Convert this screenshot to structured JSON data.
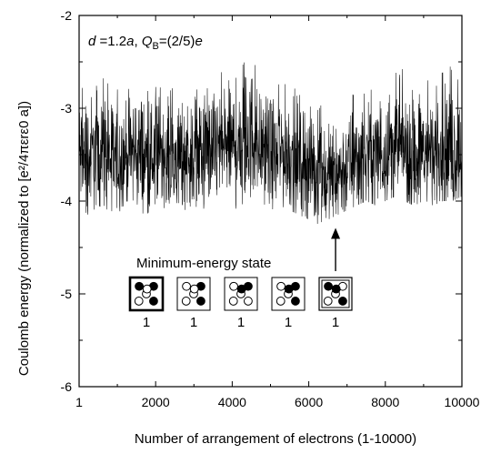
{
  "chart_data": {
    "type": "line",
    "xlabel": "Number of arrangement of electrons (1-10000)",
    "ylabel": "Coulomb energy  (normalized to  [e²/4πεrε0 a])",
    "xlim": [
      1,
      10000
    ],
    "ylim": [
      -6,
      -2
    ],
    "x_ticks": [
      1,
      2000,
      4000,
      6000,
      8000,
      10000
    ],
    "x_tick_labels": [
      "1",
      "2000",
      "4000",
      "6000",
      "8000",
      "10000"
    ],
    "y_ticks": [
      -6,
      -5,
      -4,
      -3,
      -2
    ],
    "y_tick_labels": [
      "-6",
      "-5",
      "-4",
      "-3",
      "-2"
    ],
    "grid": false,
    "series": [
      {
        "x": [
          1,
          250,
          500,
          750,
          1000,
          1250,
          1500,
          1750,
          2000,
          2250,
          2500,
          2750,
          3000,
          3250,
          3500,
          3750,
          4000,
          4250,
          4500,
          4750,
          5000,
          5250,
          5500,
          5750,
          6000,
          6250,
          6500,
          6750,
          7000,
          7250,
          7500,
          7750,
          8000,
          8250,
          8500,
          8750,
          9000,
          9250,
          9500,
          9750,
          10000
        ],
        "y": [
          -3.5,
          -3.55,
          -3.45,
          -3.5,
          -3.55,
          -3.5,
          -3.45,
          -3.55,
          -3.5,
          -3.45,
          -3.55,
          -3.5,
          -3.45,
          -3.5,
          -3.45,
          -3.4,
          -3.4,
          -3.35,
          -3.3,
          -3.4,
          -3.5,
          -3.45,
          -3.5,
          -3.55,
          -3.6,
          -3.7,
          -3.75,
          -3.7,
          -3.65,
          -3.55,
          -3.5,
          -3.5,
          -3.45,
          -3.4,
          -3.45,
          -3.5,
          -3.45,
          -3.5,
          -3.45,
          -3.5,
          -3.45
        ],
        "upper": [
          -2.8,
          -2.7,
          -2.65,
          -2.7,
          -2.75,
          -2.8,
          -2.65,
          -2.75,
          -2.7,
          -2.8,
          -2.7,
          -2.85,
          -2.75,
          -2.8,
          -2.7,
          -2.6,
          -2.75,
          -2.5,
          -2.4,
          -2.7,
          -2.8,
          -2.7,
          -2.75,
          -2.8,
          -2.9,
          -2.95,
          -3.0,
          -2.95,
          -2.85,
          -2.8,
          -2.75,
          -2.7,
          -2.65,
          -2.5,
          -2.6,
          -2.7,
          -2.6,
          -2.7,
          -2.6,
          -2.5,
          -2.7
        ],
        "lower": [
          -4.1,
          -4.15,
          -4.05,
          -4.1,
          -4.15,
          -4.0,
          -4.1,
          -4.15,
          -4.05,
          -4.1,
          -4.0,
          -4.1,
          -4.05,
          -4.1,
          -4.0,
          -4.05,
          -4.1,
          -4.05,
          -3.95,
          -4.0,
          -4.1,
          -4.05,
          -4.1,
          -4.15,
          -4.2,
          -4.25,
          -4.2,
          -4.15,
          -4.1,
          -4.05,
          -4.0,
          -4.05,
          -4.0,
          -3.95,
          -4.0,
          -4.05,
          -4.0,
          -4.05,
          -4.0,
          -4.0,
          -3.95
        ]
      }
    ],
    "annotations": {
      "params_d": "d",
      "params_eq1": " =1.2",
      "params_a": "a",
      "params_comma": ", ",
      "params_Q": "Q",
      "params_Qsub": "B",
      "params_eq2": "=(2/5)",
      "params_e": "e",
      "min_label": "Minimum-energy state",
      "min_x": 6700,
      "min_y": -4.25,
      "boxes": [
        {
          "label": "1",
          "dots": [
            "f",
            "f",
            "o",
            "o",
            "f",
            "o"
          ]
        },
        {
          "label": "1",
          "dots": [
            "o",
            "f",
            "o",
            "o",
            "f",
            "o"
          ]
        },
        {
          "label": "1",
          "dots": [
            "o",
            "f",
            "o",
            "o",
            "o",
            "f"
          ]
        },
        {
          "label": "1",
          "dots": [
            "o",
            "f",
            "o",
            "o",
            "f",
            "f"
          ]
        },
        {
          "label": "1",
          "dots": [
            "f",
            "o",
            "o",
            "o",
            "f",
            "f"
          ]
        }
      ]
    }
  }
}
